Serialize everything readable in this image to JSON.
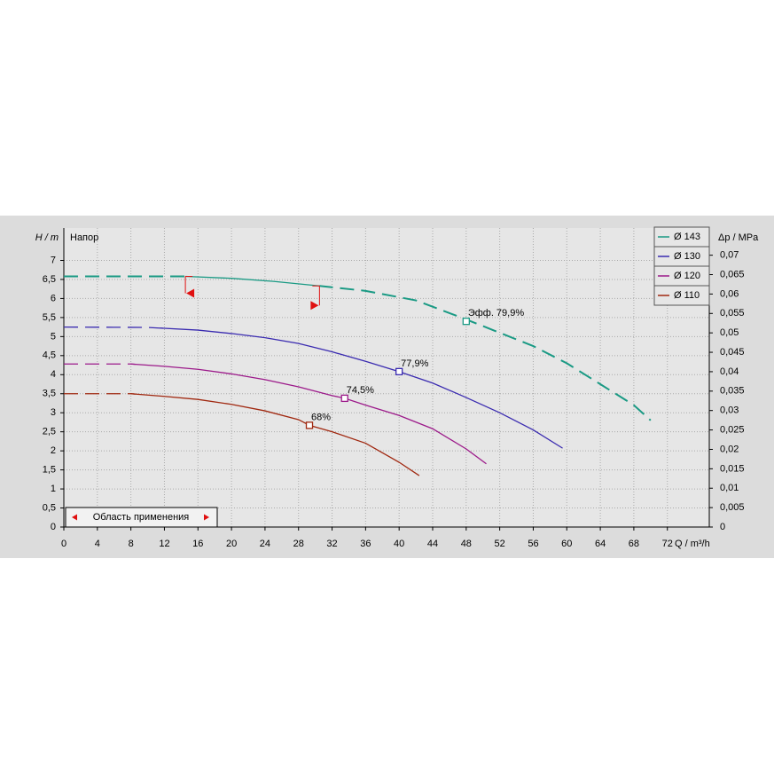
{
  "chart_data": {
    "type": "line",
    "y_label": "H / m",
    "y_sublabel": "Напор",
    "y2_label": "Δp / MPa",
    "x_label": "Q / m³/h",
    "xlim": [
      0,
      77
    ],
    "xticks": [
      0,
      4,
      8,
      12,
      16,
      20,
      24,
      28,
      32,
      36,
      40,
      44,
      48,
      52,
      56,
      60,
      64,
      68,
      72
    ],
    "ylim": [
      0,
      7.85
    ],
    "yticks": [
      0,
      {
        "value": 0.5,
        "label": "0,5"
      },
      1,
      {
        "value": 1.5,
        "label": "1,5"
      },
      2,
      {
        "value": 2.5,
        "label": "2,5"
      },
      3,
      {
        "value": 3.5,
        "label": "3,5"
      },
      4,
      {
        "value": 4.5,
        "label": "4,5"
      },
      5,
      {
        "value": 5.5,
        "label": "5,5"
      },
      6,
      {
        "value": 6.5,
        "label": "6,5"
      },
      7
    ],
    "y2lim": [
      0,
      0.077
    ],
    "y2ticks": [
      0,
      {
        "value": 0.005,
        "label": "0,005"
      },
      {
        "value": 0.01,
        "label": "0,01"
      },
      {
        "value": 0.015,
        "label": "0,015"
      },
      {
        "value": 0.02,
        "label": "0,02"
      },
      {
        "value": 0.025,
        "label": "0,025"
      },
      {
        "value": 0.03,
        "label": "0,03"
      },
      {
        "value": 0.035,
        "label": "0,035"
      },
      {
        "value": 0.04,
        "label": "0,04"
      },
      {
        "value": 0.045,
        "label": "0,045"
      },
      {
        "value": 0.05,
        "label": "0,05"
      },
      {
        "value": 0.055,
        "label": "0,055"
      },
      {
        "value": 0.06,
        "label": "0,06"
      },
      {
        "value": 0.065,
        "label": "0,065"
      },
      {
        "value": 0.07,
        "label": "0,07"
      }
    ],
    "grid": true,
    "legend": "top-right",
    "application_range": {
      "label": "Область применения",
      "x": [
        14.5,
        30.5
      ],
      "color": "#e01010"
    },
    "series": [
      {
        "name": "Ø 143",
        "color": "#1a9a84",
        "x": [
          0,
          14.5,
          20,
          25,
          30.5,
          36,
          42,
          48,
          52,
          56,
          60,
          64,
          68,
          70
        ],
        "values": [
          6.58,
          6.58,
          6.53,
          6.45,
          6.33,
          6.2,
          5.95,
          5.45,
          5.1,
          4.75,
          4.3,
          3.75,
          3.2,
          2.8
        ],
        "dashed_ranges": [
          [
            0,
            14.5
          ],
          [
            30.5,
            70
          ]
        ],
        "efficiency": {
          "x": 48,
          "y": 5.4,
          "label": "Эфф.  79,9%"
        }
      },
      {
        "name": "Ø 130",
        "color": "#3a2bb0",
        "x": [
          0,
          10,
          16,
          20,
          24,
          28,
          32,
          36,
          40,
          44,
          48,
          52,
          56,
          59.5
        ],
        "values": [
          5.25,
          5.24,
          5.17,
          5.08,
          4.97,
          4.82,
          4.6,
          4.35,
          4.08,
          3.78,
          3.4,
          3.0,
          2.55,
          2.07
        ],
        "dashed_ranges": [
          [
            0,
            11.5
          ]
        ],
        "efficiency": {
          "x": 40,
          "y": 4.08,
          "label": "77,9%"
        }
      },
      {
        "name": "Ø 120",
        "color": "#9c1a8a",
        "x": [
          0,
          8,
          12,
          16,
          20,
          24,
          28,
          32,
          33.5,
          36,
          40,
          44,
          48,
          50.4
        ],
        "values": [
          4.28,
          4.28,
          4.22,
          4.14,
          4.02,
          3.87,
          3.68,
          3.45,
          3.38,
          3.2,
          2.93,
          2.58,
          2.05,
          1.66
        ],
        "dashed_ranges": [
          [
            0,
            8
          ]
        ],
        "efficiency": {
          "x": 33.5,
          "y": 3.38,
          "label": "74,5%"
        }
      },
      {
        "name": "Ø 110",
        "color": "#a02810",
        "x": [
          0,
          8,
          12,
          16,
          20,
          24,
          28,
          29.3,
          32,
          36,
          40,
          42.4
        ],
        "values": [
          3.5,
          3.5,
          3.43,
          3.35,
          3.22,
          3.05,
          2.82,
          2.67,
          2.5,
          2.2,
          1.7,
          1.35
        ],
        "dashed_ranges": [
          [
            0,
            8
          ]
        ],
        "efficiency": {
          "x": 29.3,
          "y": 2.67,
          "label": "68%"
        }
      }
    ]
  }
}
